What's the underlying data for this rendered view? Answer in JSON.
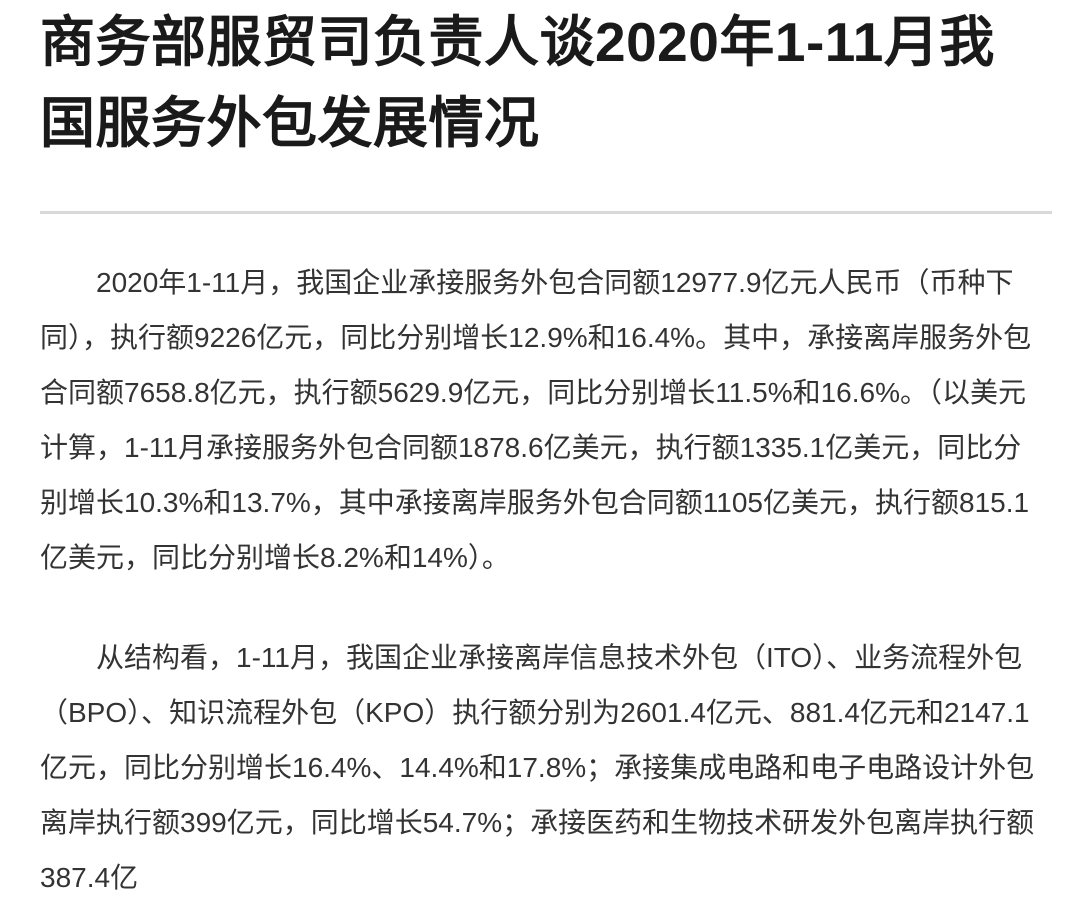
{
  "article": {
    "title": "商务部服贸司负责人谈2020年1-11月我国服务外包发展情况",
    "paragraphs": [
      "2020年1-11月，我国企业承接服务外包合同额12977.9亿元人民币（币种下同），执行额9226亿元，同比分别增长12.9%和16.4%。其中，承接离岸服务外包合同额7658.8亿元，执行额5629.9亿元，同比分别增长11.5%和16.6%。（以美元计算，1-11月承接服务外包合同额1878.6亿美元，执行额1335.1亿美元，同比分别增长10.3%和13.7%，其中承接离岸服务外包合同额1105亿美元，执行额815.1亿美元，同比分别增长8.2%和14%）。",
      "从结构看，1-11月，我国企业承接离岸信息技术外包（ITO）、业务流程外包（BPO）、知识流程外包（KPO）执行额分别为2601.4亿元、881.4亿元和2147.1亿元，同比分别增长16.4%、14.4%和17.8%；承接集成电路和电子电路设计外包离岸执行额399亿元，同比增长54.7%；承接医药和生物技术研发外包离岸执行额387.4亿"
    ]
  },
  "colors": {
    "title_text": "#1a1a1a",
    "body_text": "#333333",
    "divider": "#d9d9d9",
    "background": "#ffffff"
  }
}
